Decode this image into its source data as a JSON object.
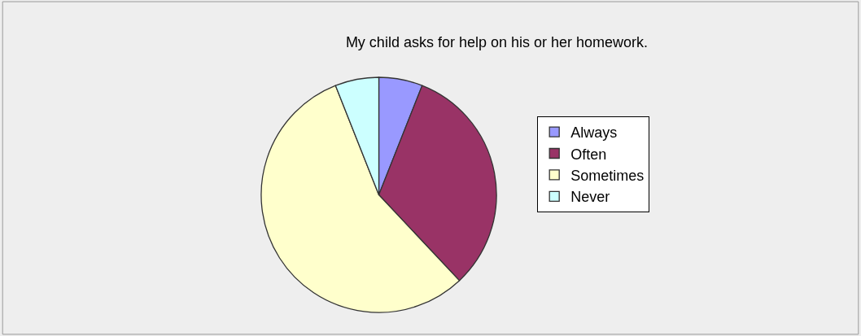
{
  "chart_data": {
    "type": "pie",
    "title": "My child asks for help on his or her homework.",
    "categories": [
      "Always",
      "Often",
      "Sometimes",
      "Never"
    ],
    "values": [
      6,
      32,
      56,
      6
    ],
    "colors": [
      "#9999ff",
      "#993366",
      "#ffffcc",
      "#ccffff"
    ],
    "legend": "right"
  }
}
